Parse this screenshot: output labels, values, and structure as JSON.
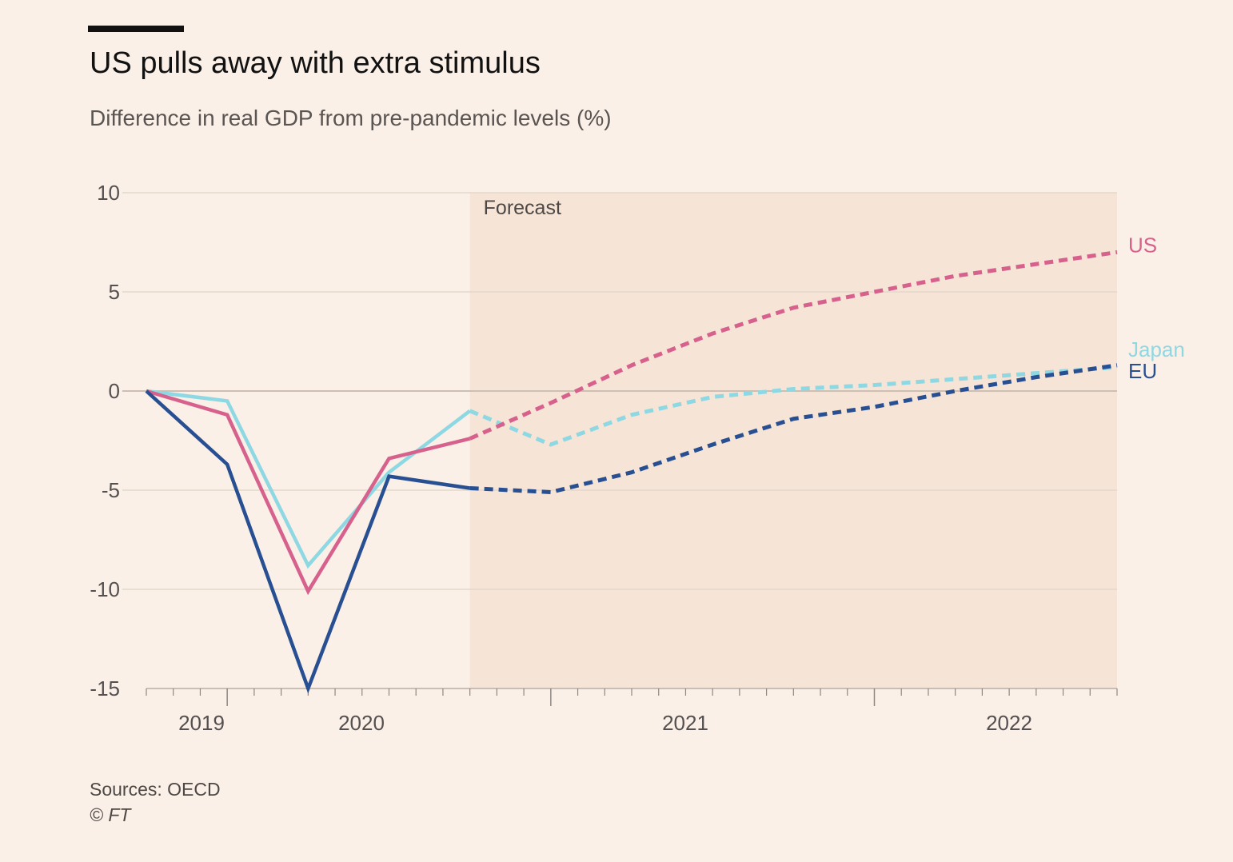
{
  "header": {
    "title": "US pulls away with extra stimulus",
    "subtitle": "Difference in real GDP from pre-pandemic levels (%)"
  },
  "footer": {
    "source": "Sources: OECD",
    "credit": "© FT"
  },
  "colors": {
    "background": "#fbf0e7",
    "forecast_shade": "#f6e4d6",
    "us": "#d7618d",
    "japan": "#8ed8e3",
    "eu": "#274f92",
    "grid": "#e3d7cc",
    "zero_line": "#cdbfb3",
    "axis_text": "#555050"
  },
  "chart_data": {
    "type": "line",
    "title": "US pulls away with extra stimulus",
    "ylabel": "Difference in real GDP from pre-pandemic levels (%)",
    "xlabel": "",
    "x": [
      "2019Q4",
      "2020Q1",
      "2020Q2",
      "2020Q3",
      "2020Q4",
      "2021Q1",
      "2021Q2",
      "2021Q3",
      "2021Q4",
      "2022Q1",
      "2022Q2",
      "2022Q3",
      "2022Q4"
    ],
    "xlim": [
      "2019Q4",
      "2022Q4"
    ],
    "ylim": [
      -15,
      10
    ],
    "yticks": [
      10,
      5,
      0,
      -5,
      -10,
      -15
    ],
    "year_labels": [
      "2019",
      "2020",
      "2021",
      "2022"
    ],
    "forecast_label": "Forecast",
    "forecast_start": "2020Q4",
    "series": [
      {
        "name": "US",
        "color_key": "us",
        "values": [
          0,
          -1.2,
          -10.1,
          -3.4,
          -2.4,
          -0.6,
          1.3,
          2.9,
          4.2,
          5.0,
          5.8,
          6.4,
          7.0
        ]
      },
      {
        "name": "Japan",
        "color_key": "japan",
        "values": [
          0,
          -0.5,
          -8.8,
          -4.1,
          -1.0,
          -2.7,
          -1.2,
          -0.3,
          0.1,
          0.3,
          0.6,
          0.9,
          1.2
        ]
      },
      {
        "name": "EU",
        "color_key": "eu",
        "values": [
          0,
          -3.7,
          -15.0,
          -4.3,
          -4.9,
          -5.1,
          -4.1,
          -2.7,
          -1.4,
          -0.8,
          0.0,
          0.7,
          1.3
        ]
      }
    ]
  }
}
